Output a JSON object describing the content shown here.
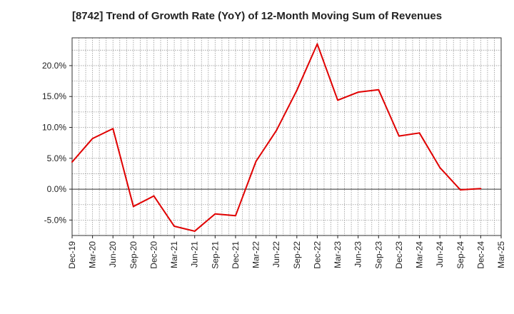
{
  "chart_data": {
    "type": "line",
    "title": "[8742]  Trend of Growth Rate (YoY) of 12-Month Moving Sum of Revenues",
    "xlabel": "",
    "ylabel": "",
    "x": [
      "Dec-19",
      "Mar-20",
      "Jun-20",
      "Sep-20",
      "Dec-20",
      "Mar-21",
      "Jun-21",
      "Sep-21",
      "Dec-21",
      "Mar-22",
      "Jun-22",
      "Sep-22",
      "Dec-22",
      "Mar-23",
      "Jun-23",
      "Sep-23",
      "Dec-23",
      "Mar-24",
      "Jun-24",
      "Sep-24",
      "Dec-24"
    ],
    "x_ticks": [
      "Dec-19",
      "Mar-20",
      "Jun-20",
      "Sep-20",
      "Dec-20",
      "Mar-21",
      "Jun-21",
      "Sep-21",
      "Dec-21",
      "Mar-22",
      "Jun-22",
      "Sep-22",
      "Dec-22",
      "Mar-23",
      "Jun-23",
      "Sep-23",
      "Dec-23",
      "Mar-24",
      "Jun-24",
      "Sep-24",
      "Dec-24",
      "Mar-25"
    ],
    "y_ticks": [
      "-5.0%",
      "0.0%",
      "5.0%",
      "10.0%",
      "15.0%",
      "20.0%"
    ],
    "series": [
      {
        "values": [
          4.4,
          8.2,
          9.8,
          -2.8,
          -1.1,
          -6.0,
          -6.8,
          -4.0,
          -4.3,
          4.5,
          9.5,
          16.0,
          23.5,
          14.4,
          15.7,
          16.1,
          8.6,
          9.1,
          3.5,
          -0.1,
          0.1
        ]
      }
    ],
    "ylim": [
      -7.5,
      24.5
    ],
    "y_unit": "%",
    "grid": true,
    "line_color": "#e00000",
    "grid_color": "#999999",
    "legend": "none"
  }
}
